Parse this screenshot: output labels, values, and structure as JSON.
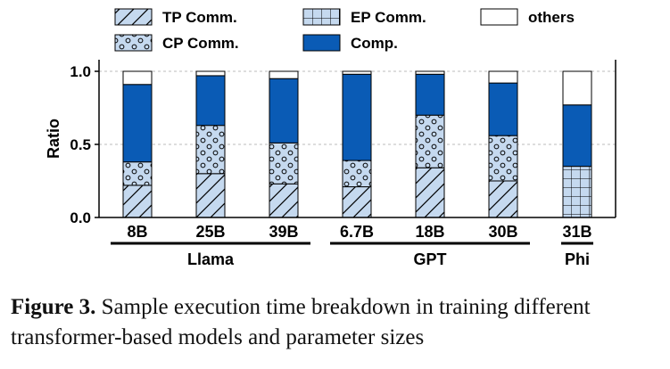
{
  "chart_data": {
    "type": "stacked-bar",
    "ylabel": "Ratio",
    "ylim": [
      0,
      1.0
    ],
    "yticks": [
      "0.0",
      "0.5",
      "1.0"
    ],
    "ytick_values": [
      0,
      0.5,
      1.0
    ],
    "categories": [
      "8B",
      "25B",
      "39B",
      "6.7B",
      "18B",
      "30B",
      "31B"
    ],
    "groups": [
      {
        "name": "Llama",
        "categories": [
          "8B",
          "25B",
          "39B"
        ]
      },
      {
        "name": "GPT",
        "categories": [
          "6.7B",
          "18B",
          "30B"
        ]
      },
      {
        "name": "Phi",
        "categories": [
          "31B"
        ]
      }
    ],
    "series": [
      {
        "name": "TP Comm.",
        "pattern": "diagonal",
        "color": "#c5d9ef",
        "values": [
          0.22,
          0.3,
          0.23,
          0.21,
          0.34,
          0.25,
          0.0
        ]
      },
      {
        "name": "EP Comm.",
        "pattern": "grid",
        "color": "#c5d9ef",
        "values": [
          0.0,
          0.0,
          0.0,
          0.0,
          0.0,
          0.0,
          0.35
        ]
      },
      {
        "name": "CP Comm.",
        "pattern": "dots",
        "color": "#c5d9ef",
        "values": [
          0.16,
          0.33,
          0.28,
          0.18,
          0.36,
          0.31,
          0.0
        ]
      },
      {
        "name": "Comp.",
        "pattern": "solid",
        "color": "#0a5bb5",
        "values": [
          0.53,
          0.34,
          0.44,
          0.59,
          0.28,
          0.36,
          0.42
        ]
      },
      {
        "name": "others",
        "pattern": "none",
        "color": "#ffffff",
        "values": [
          0.09,
          0.03,
          0.05,
          0.02,
          0.02,
          0.08,
          0.23
        ]
      }
    ],
    "legend": [
      {
        "name": "TP Comm.",
        "pattern": "diagonal"
      },
      {
        "name": "EP Comm.",
        "pattern": "grid"
      },
      {
        "name": "others",
        "pattern": "none"
      },
      {
        "name": "CP Comm.",
        "pattern": "dots"
      },
      {
        "name": "Comp.",
        "pattern": "solid"
      }
    ],
    "legend_position": "top",
    "grid": "horizontal-dashed"
  },
  "caption": {
    "label": "Figure 3.",
    "text": "Sample execution time breakdown in training different transformer-based models and parameter sizes"
  }
}
